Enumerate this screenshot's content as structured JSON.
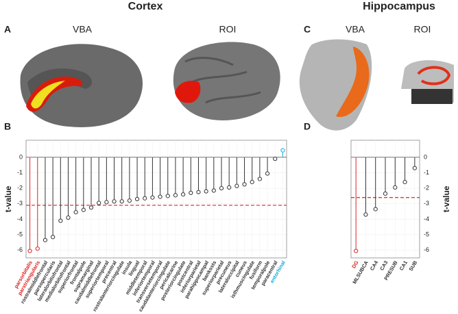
{
  "figure": {
    "titles": [
      "Cortex",
      "Hippocampus"
    ],
    "panel_labels": [
      "A",
      "B",
      "C",
      "D"
    ],
    "image_labels": [
      "VBA",
      "ROI",
      "VBA",
      "ROI"
    ]
  },
  "chart_data": [
    {
      "type": "stem",
      "ylabel": "t-value",
      "categories": [
        "parsorbitalis",
        "parstriangularis",
        "rostralmiddlefrontal",
        "parsopercularis",
        "lateralorbitofrontal",
        "medialorbitofrontal",
        "superiorfrontal",
        "frontalpole",
        "supramarginal",
        "caudalmiddlefrontal",
        "superiortemporal",
        "precentral",
        "rostralanteriorcingulate",
        "insula",
        "lingual",
        "middletemporal",
        "inferiortemporal",
        "transversetemporal",
        "caudalanteriorcingulate",
        "pericalcarine",
        "posteriorcingulate",
        "postcentral",
        "inferiorparietal",
        "parahippocampal",
        "bankssts",
        "superiorparietal",
        "precuneus",
        "lateraloccipital",
        "cuneus",
        "isthmuscingulate",
        "fusiform",
        "temporalpole",
        "paracentral",
        "entorhinal"
      ],
      "values": [
        -6.05,
        -5.9,
        -5.35,
        -5.15,
        -4.1,
        -3.9,
        -3.55,
        -3.4,
        -3.25,
        -2.95,
        -2.9,
        -2.85,
        -2.85,
        -2.8,
        -2.7,
        -2.65,
        -2.6,
        -2.55,
        -2.5,
        -2.45,
        -2.4,
        -2.3,
        -2.25,
        -2.2,
        -2.15,
        -2.0,
        -1.95,
        -1.85,
        -1.75,
        -1.6,
        -1.4,
        -1.05,
        -0.1,
        0.45
      ],
      "colors": [
        "#e02020",
        "#e02020",
        "#333333",
        "#333333",
        "#333333",
        "#333333",
        "#333333",
        "#333333",
        "#333333",
        "#333333",
        "#333333",
        "#333333",
        "#333333",
        "#333333",
        "#333333",
        "#333333",
        "#333333",
        "#333333",
        "#333333",
        "#333333",
        "#333333",
        "#333333",
        "#333333",
        "#333333",
        "#333333",
        "#333333",
        "#333333",
        "#333333",
        "#333333",
        "#333333",
        "#333333",
        "#333333",
        "#333333",
        "#1aa7d8"
      ],
      "threshold": -3.1,
      "threshold_color": "#e02020",
      "ylim": [
        -6.5,
        1.1
      ],
      "yticks": [
        -6,
        -5,
        -4,
        -3,
        -2,
        -1,
        0
      ],
      "grid": true,
      "yaxis_side": "left"
    },
    {
      "type": "stem",
      "ylabel": "t-value",
      "categories": [
        "DG",
        "MLSUBCA",
        "CA4",
        "CA3",
        "PRESUB",
        "CA1",
        "SUB"
      ],
      "values": [
        -6.05,
        -3.7,
        -3.35,
        -2.35,
        -1.95,
        -1.6,
        -0.7
      ],
      "colors": [
        "#e02020",
        "#333333",
        "#333333",
        "#333333",
        "#333333",
        "#333333",
        "#333333"
      ],
      "threshold": -2.6,
      "threshold_color": "#e02020",
      "ylim": [
        -6.5,
        1.1
      ],
      "yticks": [
        -6,
        -5,
        -4,
        -3,
        -2,
        -1,
        0
      ],
      "grid": true,
      "yaxis_side": "right"
    }
  ]
}
